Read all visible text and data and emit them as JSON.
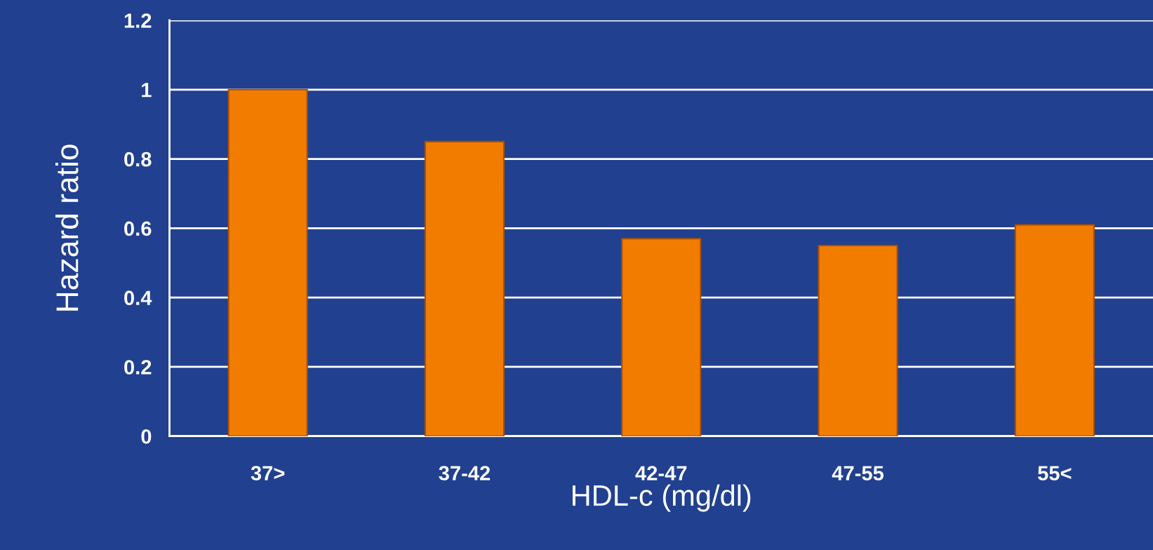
{
  "chart_data": {
    "type": "bar",
    "xlabel": "HDL-c (mg/dl)",
    "ylabel": "Hazard ratio",
    "categories": [
      "37>",
      "37-42",
      "42-47",
      "47-55",
      "55<"
    ],
    "values": [
      1,
      0.85,
      0.57,
      0.55,
      0.61
    ],
    "color": "#f27c00",
    "ylim": [
      0,
      1.2
    ],
    "yticks": [
      0,
      0.2,
      0.4,
      0.6,
      0.8,
      1,
      1.2
    ],
    "grid": "y",
    "legend": false
  }
}
